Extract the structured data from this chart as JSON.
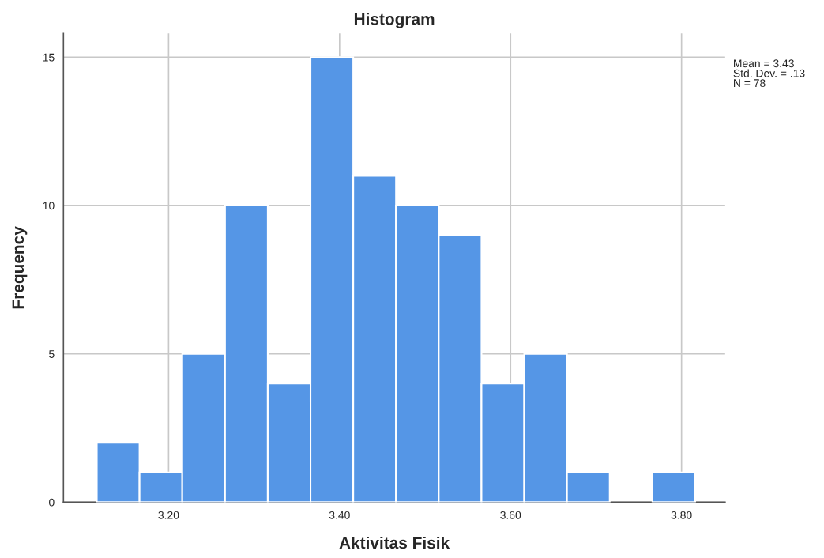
{
  "chart_data": {
    "type": "histogram",
    "title": "Histogram",
    "xlabel": "Aktivitas Fisik",
    "ylabel": "Frequency",
    "bins": [
      3.116,
      3.166,
      3.216,
      3.266,
      3.316,
      3.366,
      3.416,
      3.466,
      3.516,
      3.566,
      3.616,
      3.666,
      3.716,
      3.766,
      3.816
    ],
    "values": [
      2,
      1,
      5,
      10,
      4,
      15,
      11,
      10,
      9,
      4,
      5,
      1,
      0,
      1
    ],
    "color": "#5596e6",
    "xlim": [
      3.077,
      3.851
    ],
    "ylim": [
      0,
      15.8
    ],
    "xticks": [
      {
        "value": 3.2,
        "label": "3.20"
      },
      {
        "value": 3.4,
        "label": "3.40"
      },
      {
        "value": 3.6,
        "label": "3.60"
      },
      {
        "value": 3.8,
        "label": "3.80"
      }
    ],
    "yticks": [
      0,
      5,
      10,
      15
    ],
    "grid": true,
    "annotations": [
      "Mean = 3.43\nStd. Dev. = .13\nN = 78"
    ]
  }
}
